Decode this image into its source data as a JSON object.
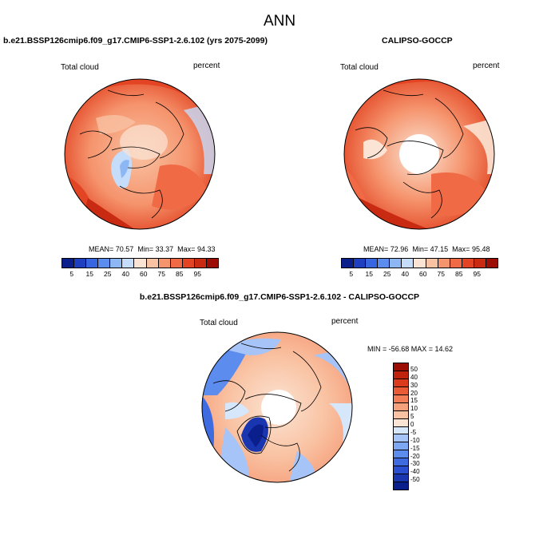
{
  "title": "ANN",
  "panels": [
    {
      "case_title": "b.e21.BSSP126cmip6.f09_g17.CMIP6-SSP1-2.6.102 (yrs 2075-2099)",
      "left_label": "Total cloud",
      "right_label": "percent",
      "stats": {
        "mean_label": "MEAN=",
        "mean": "70.57",
        "min_label": "Min=",
        "min": "33.37",
        "max_label": "Max=",
        "max": "94.33"
      }
    },
    {
      "case_title": "CALIPSO-GOCCP",
      "left_label": "Total cloud",
      "right_label": "percent",
      "stats": {
        "mean_label": "MEAN=",
        "mean": "72.96",
        "min_label": "Min=",
        "min": "47.15",
        "max_label": "Max=",
        "max": "95.48"
      }
    },
    {
      "case_title": "b.e21.BSSP126cmip6.f09_g17.CMIP6-SSP1-2.6.102 - CALIPSO-GOCCP",
      "left_label": "Total cloud",
      "right_label": "percent",
      "stats_text": "MIN = -56.68 MAX =  14.62"
    }
  ],
  "colorbar_abs": {
    "colors": [
      "#0a1f8c",
      "#1e3fbf",
      "#3866e0",
      "#5b8cee",
      "#8db6f5",
      "#c5dcfa",
      "#fbe4d4",
      "#f9c2a2",
      "#f5946d",
      "#ef6a45",
      "#e34524",
      "#c82a12",
      "#9c0d05"
    ],
    "ticks": [
      "5",
      "15",
      "25",
      "40",
      "60",
      "75",
      "85",
      "95"
    ]
  },
  "colorbar_diff": {
    "colors": [
      "#0a1f8c",
      "#1a35b0",
      "#2a4fd0",
      "#3f6be0",
      "#5b8cee",
      "#7da6f3",
      "#a6c4f7",
      "#d6e6fb",
      "#fbe4d4",
      "#f9c2a2",
      "#f6a07c",
      "#f27d57",
      "#ea5a36",
      "#db3a1d",
      "#c0220d",
      "#9c0d05"
    ],
    "ticks": [
      "50",
      "40",
      "30",
      "20",
      "15",
      "10",
      "5",
      "0",
      "-5",
      "-10",
      "-15",
      "-20",
      "-30",
      "-40",
      "-50"
    ]
  }
}
